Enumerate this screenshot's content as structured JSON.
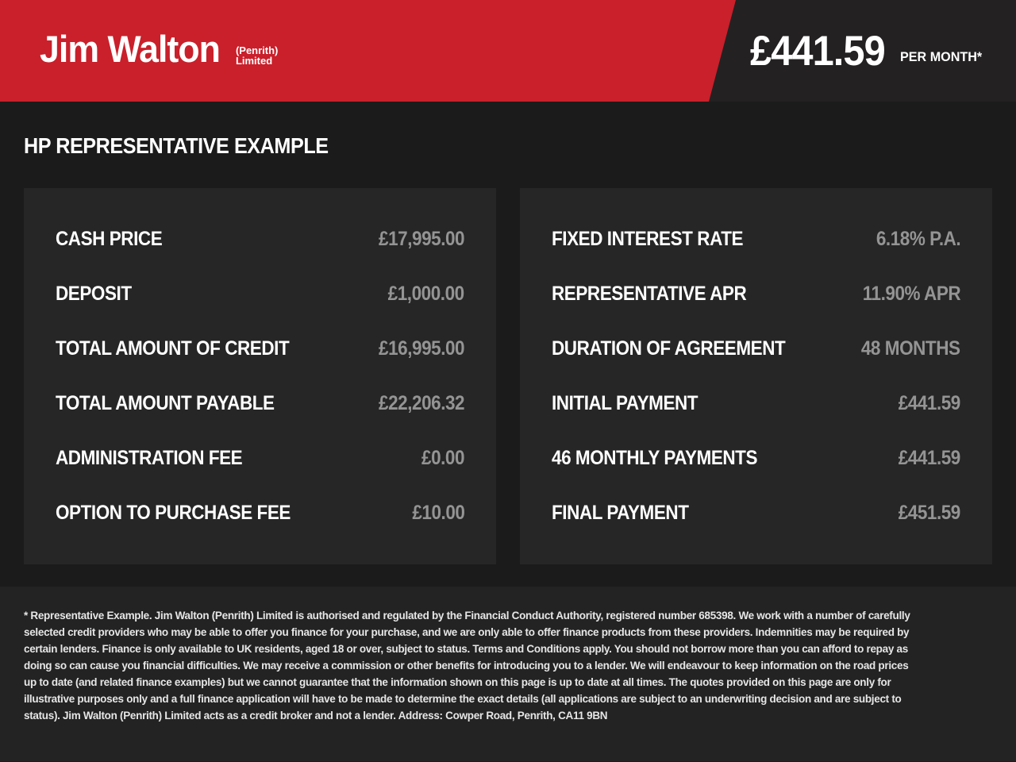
{
  "header": {
    "brand": {
      "name": "Jim Walton",
      "suffix_line1": "(Penrith)",
      "suffix_line2": "Limited"
    },
    "monthly_price": "£441.59",
    "monthly_price_label": "PER MONTH*"
  },
  "main": {
    "title": "HP REPRESENTATIVE EXAMPLE",
    "left_panel": {
      "rows": [
        {
          "label": "CASH PRICE",
          "value": "£17,995.00"
        },
        {
          "label": "DEPOSIT",
          "value": "£1,000.00"
        },
        {
          "label": "TOTAL AMOUNT OF CREDIT",
          "value": "£16,995.00"
        },
        {
          "label": "TOTAL AMOUNT PAYABLE",
          "value": "£22,206.32"
        },
        {
          "label": "ADMINISTRATION FEE",
          "value": "£0.00"
        },
        {
          "label": "OPTION TO PURCHASE FEE",
          "value": "£10.00"
        }
      ]
    },
    "right_panel": {
      "rows": [
        {
          "label": "FIXED INTEREST RATE",
          "value": "6.18% P.A."
        },
        {
          "label": "REPRESENTATIVE APR",
          "value": "11.90% APR"
        },
        {
          "label": "DURATION OF AGREEMENT",
          "value": "48 MONTHS"
        },
        {
          "label": "INITIAL PAYMENT",
          "value": "£441.59"
        },
        {
          "label": "46 MONTHLY PAYMENTS",
          "value": "£441.59"
        },
        {
          "label": "FINAL PAYMENT",
          "value": "£451.59"
        }
      ]
    }
  },
  "footer": {
    "disclaimer": "* Representative Example. Jim Walton (Penrith) Limited is authorised and regulated by the Financial Conduct Authority, registered number 685398. We work with a number of carefully selected credit providers who may be able to offer you finance for your purchase, and we are only able to offer finance products from these providers. Indemnities may be required by certain lenders. Finance is only available to UK residents, aged 18 or over, subject to status. Terms and Conditions apply. You should not borrow more than you can afford to repay as doing so can cause you financial difficulties. We may receive a commission or other benefits for introducing you to a lender. We will endeavour to keep information on the road prices up to date (and related finance examples) but we cannot guarantee that the information shown on this page is up to date at all times. The quotes provided on this page are only for illustrative purposes only and a full finance application will have to be made to determine the exact details (all applications are subject to an underwriting decision and are subject to status). Jim Walton (Penrith) Limited acts as a credit broker and not a lender. Address: Cowper Road, Penrith, CA11 9BN"
  },
  "colors": {
    "brand_red": "#c9202b",
    "header_dark": "#242122",
    "page_bg": "#1b1b1b",
    "panel_bg": "#262626",
    "footer_bg": "#232323",
    "label_text": "#ffffff",
    "value_text": "#949494"
  }
}
